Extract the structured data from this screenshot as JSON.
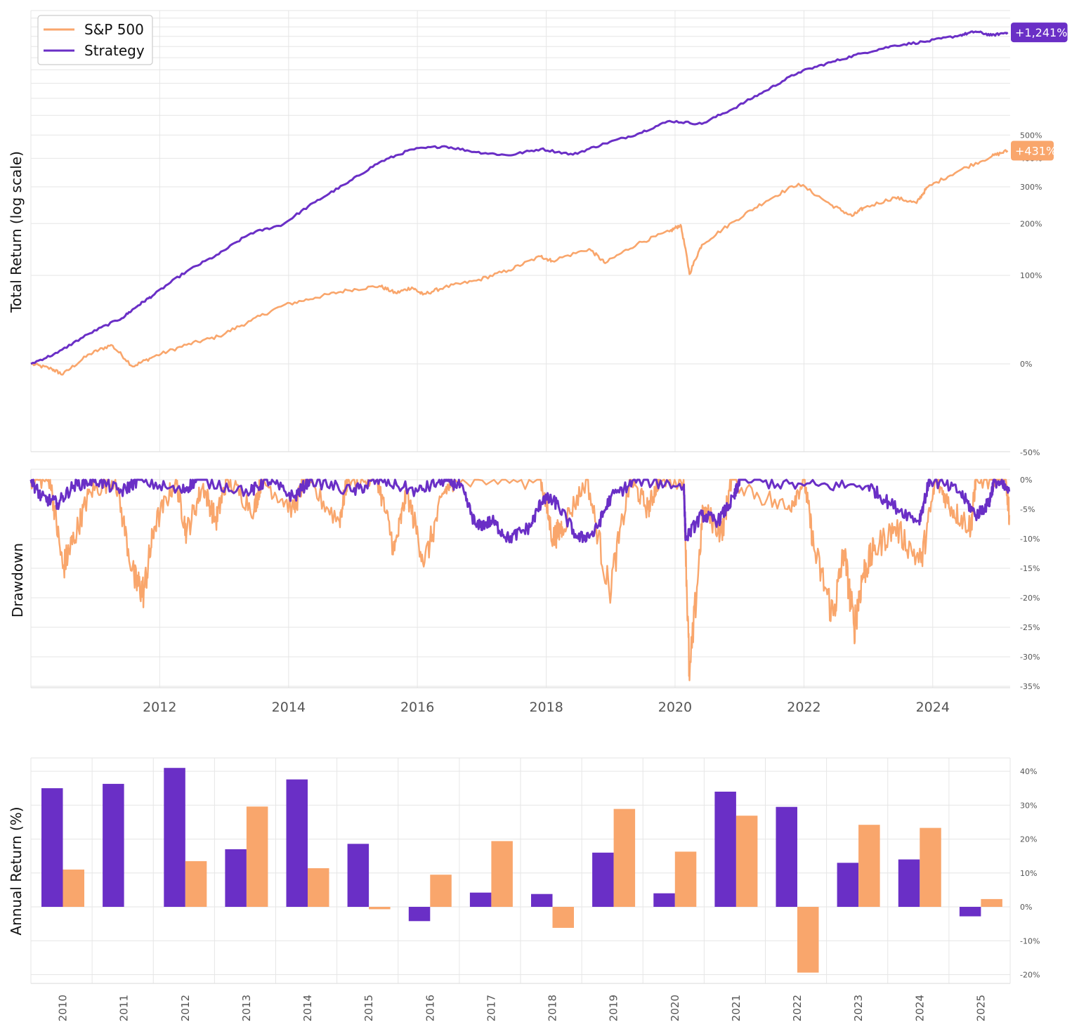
{
  "colors": {
    "strategy": "#6a2fc6",
    "sp500": "#f9a66c",
    "grid": "#e6e6e6",
    "text": "#555555"
  },
  "legend": {
    "placement": "top-left",
    "items": [
      {
        "label": "S&P 500",
        "color": "#f9a66c"
      },
      {
        "label": "Strategy",
        "color": "#6a2fc6"
      }
    ]
  },
  "chart_data": [
    {
      "type": "line",
      "title": "",
      "ylabel": "Total Return (log scale)",
      "yscale": "log (growth factor = 1 + return)",
      "yticks": [
        "-50%",
        "0%",
        "100%",
        "200%",
        "300%",
        "400%",
        "500%"
      ],
      "ytick_values": [
        -50,
        0,
        100,
        200,
        300,
        400,
        500
      ],
      "xlim": [
        "2010-01-01",
        "2025-03-15"
      ],
      "grid": true,
      "end_labels": {
        "strategy": "+1,241%",
        "sp500": "+431%"
      },
      "series": [
        {
          "name": "Strategy",
          "color": "#6a2fc6",
          "points": [
            [
              "2010-01-01",
              0
            ],
            [
              "2010-06-01",
              9
            ],
            [
              "2010-12-01",
              27
            ],
            [
              "2011-06-01",
              43
            ],
            [
              "2011-09-01",
              58
            ],
            [
              "2011-12-01",
              72
            ],
            [
              "2012-06-01",
              106
            ],
            [
              "2012-12-01",
              136
            ],
            [
              "2013-06-01",
              178
            ],
            [
              "2013-12-01",
              198
            ],
            [
              "2014-06-01",
              255
            ],
            [
              "2014-12-01",
              312
            ],
            [
              "2015-06-01",
              385
            ],
            [
              "2015-12-01",
              436
            ],
            [
              "2016-06-01",
              450
            ],
            [
              "2016-12-01",
              425
            ],
            [
              "2017-06-01",
              412
            ],
            [
              "2017-12-01",
              438
            ],
            [
              "2018-06-01",
              415
            ],
            [
              "2018-12-01",
              462
            ],
            [
              "2019-06-01",
              505
            ],
            [
              "2019-12-01",
              570
            ],
            [
              "2020-06-01",
              555
            ],
            [
              "2020-12-01",
              640
            ],
            [
              "2021-06-01",
              750
            ],
            [
              "2021-12-01",
              880
            ],
            [
              "2022-06-01",
              960
            ],
            [
              "2022-12-01",
              1040
            ],
            [
              "2023-06-01",
              1110
            ],
            [
              "2023-12-01",
              1150
            ],
            [
              "2024-06-01",
              1210
            ],
            [
              "2024-09-01",
              1250
            ],
            [
              "2024-12-01",
              1210
            ],
            [
              "2025-03-01",
              1241
            ]
          ]
        },
        {
          "name": "S&P 500",
          "color": "#f9a66c",
          "points": [
            [
              "2010-01-01",
              0
            ],
            [
              "2010-05-01",
              -4
            ],
            [
              "2010-07-01",
              -8
            ],
            [
              "2010-12-01",
              8
            ],
            [
              "2011-04-01",
              16
            ],
            [
              "2011-08-01",
              -2
            ],
            [
              "2011-12-01",
              6
            ],
            [
              "2012-06-01",
              16
            ],
            [
              "2012-12-01",
              24
            ],
            [
              "2013-06-01",
              40
            ],
            [
              "2013-12-01",
              58
            ],
            [
              "2014-06-01",
              68
            ],
            [
              "2014-12-01",
              78
            ],
            [
              "2015-06-01",
              84
            ],
            [
              "2015-09-01",
              74
            ],
            [
              "2015-12-01",
              82
            ],
            [
              "2016-02-01",
              72
            ],
            [
              "2016-06-01",
              82
            ],
            [
              "2016-12-01",
              92
            ],
            [
              "2017-06-01",
              108
            ],
            [
              "2017-12-01",
              132
            ],
            [
              "2018-02-01",
              124
            ],
            [
              "2018-09-01",
              146
            ],
            [
              "2018-12-01",
              120
            ],
            [
              "2019-06-01",
              156
            ],
            [
              "2019-12-01",
              182
            ],
            [
              "2020-02-01",
              197
            ],
            [
              "2020-03-23",
              102
            ],
            [
              "2020-06-01",
              154
            ],
            [
              "2020-12-01",
              205
            ],
            [
              "2021-06-01",
              258
            ],
            [
              "2021-12-01",
              310
            ],
            [
              "2022-06-01",
              248
            ],
            [
              "2022-10-01",
              218
            ],
            [
              "2022-12-01",
              238
            ],
            [
              "2023-06-01",
              268
            ],
            [
              "2023-10-01",
              252
            ],
            [
              "2023-12-01",
              298
            ],
            [
              "2024-06-01",
              355
            ],
            [
              "2024-12-01",
              408
            ],
            [
              "2025-03-01",
              431
            ]
          ]
        }
      ]
    },
    {
      "type": "line",
      "title": "",
      "ylabel": "Drawdown",
      "yticks": [
        "0%",
        "-5%",
        "-10%",
        "-15%",
        "-20%",
        "-25%",
        "-30%",
        "-35%"
      ],
      "ytick_values": [
        0,
        -5,
        -10,
        -15,
        -20,
        -25,
        -30,
        -35
      ],
      "xlim": [
        "2010-01-01",
        "2025-03-15"
      ],
      "xticks": [
        "2012",
        "2014",
        "2016",
        "2018",
        "2020",
        "2022",
        "2024"
      ],
      "grid": true,
      "series": [
        {
          "name": "S&P 500",
          "color": "#f9a66c",
          "points": [
            [
              "2010-01-01",
              0
            ],
            [
              "2010-04-20",
              0
            ],
            [
              "2010-07-01",
              -15
            ],
            [
              "2010-09-01",
              -10
            ],
            [
              "2010-12-01",
              -2
            ],
            [
              "2011-04-25",
              0
            ],
            [
              "2011-08-10",
              -17
            ],
            [
              "2011-10-03",
              -19
            ],
            [
              "2011-12-01",
              -8
            ],
            [
              "2012-04-01",
              0
            ],
            [
              "2012-06-01",
              -9
            ],
            [
              "2012-09-01",
              -1
            ],
            [
              "2012-11-15",
              -7
            ],
            [
              "2013-01-15",
              0
            ],
            [
              "2013-06-20",
              -5
            ],
            [
              "2013-08-01",
              0
            ],
            [
              "2014-02-01",
              -5
            ],
            [
              "2014-04-01",
              0
            ],
            [
              "2014-10-15",
              -7
            ],
            [
              "2014-12-01",
              0
            ],
            [
              "2015-05-20",
              0
            ],
            [
              "2015-08-25",
              -12
            ],
            [
              "2015-11-01",
              -2
            ],
            [
              "2016-02-11",
              -14
            ],
            [
              "2016-06-01",
              -2
            ],
            [
              "2016-08-01",
              0
            ],
            [
              "2017-12-01",
              0
            ],
            [
              "2018-02-08",
              -10
            ],
            [
              "2018-04-01",
              -8
            ],
            [
              "2018-08-20",
              0
            ],
            [
              "2018-12-24",
              -19
            ],
            [
              "2019-04-23",
              0
            ],
            [
              "2019-08-01",
              -5
            ],
            [
              "2019-10-01",
              0
            ],
            [
              "2020-02-19",
              0
            ],
            [
              "2020-03-23",
              -34
            ],
            [
              "2020-06-08",
              -5
            ],
            [
              "2020-09-23",
              -9
            ],
            [
              "2020-11-15",
              0
            ],
            [
              "2021-09-30",
              -5
            ],
            [
              "2022-01-03",
              0
            ],
            [
              "2022-03-01",
              -12
            ],
            [
              "2022-06-16",
              -23
            ],
            [
              "2022-08-16",
              -12
            ],
            [
              "2022-10-12",
              -25
            ],
            [
              "2022-12-01",
              -16
            ],
            [
              "2023-02-01",
              -12
            ],
            [
              "2023-06-01",
              -8
            ],
            [
              "2023-10-27",
              -14
            ],
            [
              "2024-01-19",
              0
            ],
            [
              "2024-04-19",
              -5
            ],
            [
              "2024-08-05",
              -8
            ],
            [
              "2024-09-01",
              0
            ],
            [
              "2025-02-19",
              0
            ],
            [
              "2025-03-10",
              -6
            ]
          ]
        },
        {
          "name": "Strategy",
          "color": "#6a2fc6",
          "points": [
            [
              "2010-01-01",
              0
            ],
            [
              "2010-03-01",
              -3
            ],
            [
              "2010-06-01",
              -4
            ],
            [
              "2010-09-01",
              -1
            ],
            [
              "2011-01-01",
              0
            ],
            [
              "2011-06-01",
              -2
            ],
            [
              "2011-09-01",
              0
            ],
            [
              "2012-05-01",
              -2
            ],
            [
              "2012-08-01",
              0
            ],
            [
              "2013-06-01",
              -2
            ],
            [
              "2013-09-01",
              0
            ],
            [
              "2014-02-01",
              -3
            ],
            [
              "2014-05-01",
              0
            ],
            [
              "2015-01-01",
              -2
            ],
            [
              "2015-06-01",
              0
            ],
            [
              "2016-01-01",
              -2
            ],
            [
              "2016-06-01",
              0
            ],
            [
              "2016-09-01",
              -1
            ],
            [
              "2016-12-01",
              -8
            ],
            [
              "2017-03-01",
              -7
            ],
            [
              "2017-06-01",
              -10
            ],
            [
              "2017-10-01",
              -8
            ],
            [
              "2017-12-15",
              -3
            ],
            [
              "2018-03-01",
              -4
            ],
            [
              "2018-07-01",
              -10
            ],
            [
              "2018-10-01",
              -9
            ],
            [
              "2019-01-01",
              -3
            ],
            [
              "2019-06-01",
              0
            ],
            [
              "2020-02-20",
              -1
            ],
            [
              "2020-03-01",
              -10
            ],
            [
              "2020-06-01",
              -6
            ],
            [
              "2020-09-01",
              -7
            ],
            [
              "2020-12-01",
              -3
            ],
            [
              "2021-01-01",
              0
            ],
            [
              "2022-01-01",
              -1
            ],
            [
              "2023-01-01",
              -1
            ],
            [
              "2023-05-01",
              -4
            ],
            [
              "2023-10-15",
              -7
            ],
            [
              "2023-12-15",
              0
            ],
            [
              "2024-06-01",
              -2
            ],
            [
              "2024-09-01",
              -6
            ],
            [
              "2024-11-15",
              -4
            ],
            [
              "2024-12-15",
              0
            ],
            [
              "2025-03-10",
              -2
            ]
          ]
        }
      ]
    },
    {
      "type": "bar",
      "title": "",
      "ylabel": "Annual Return (%)",
      "yticks": [
        "40%",
        "30%",
        "20%",
        "10%",
        "0%",
        "-10%",
        "-20%"
      ],
      "ytick_values": [
        40,
        30,
        20,
        10,
        0,
        -10,
        -20
      ],
      "categories": [
        "2010",
        "2011",
        "2012",
        "2013",
        "2014",
        "2015",
        "2016",
        "2017",
        "2018",
        "2019",
        "2020",
        "2021",
        "2022",
        "2023",
        "2024",
        "2025"
      ],
      "grid": true,
      "series": [
        {
          "name": "Strategy",
          "color": "#6a2fc6",
          "values": [
            35,
            36.3,
            41,
            17,
            37.6,
            18.6,
            -4.2,
            4.2,
            3.8,
            16,
            4,
            34,
            29.5,
            13,
            14,
            -2.8
          ]
        },
        {
          "name": "S&P 500",
          "color": "#f9a66c",
          "values": [
            11,
            0,
            13.5,
            29.6,
            11.4,
            -0.7,
            9.5,
            19.4,
            -6.2,
            28.9,
            16.3,
            26.9,
            -19.4,
            24.2,
            23.3,
            2.3
          ]
        }
      ]
    }
  ]
}
